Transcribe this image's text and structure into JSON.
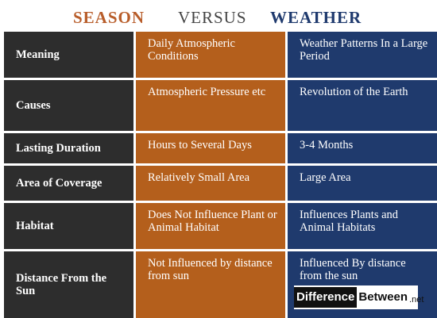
{
  "title": {
    "left": "SEASON",
    "middle": "VERSUS",
    "right": "WEATHER"
  },
  "rows": [
    {
      "label": "Meaning",
      "season": "Daily Atmospheric Conditions",
      "weather": "Weather Patterns In a Large Period"
    },
    {
      "label": "Causes",
      "season": "Atmospheric Pressure etc",
      "weather": "Revolution of the Earth"
    },
    {
      "label": "Lasting Duration",
      "season": "Hours to Several Days",
      "weather": "3-4 Months"
    },
    {
      "label": "Area of Coverage",
      "season": "Relatively Small Area",
      "weather": "Large Area"
    },
    {
      "label": "Habitat",
      "season": "Does Not Influence Plant or Animal Habitat",
      "weather": "Influences Plants and Animal Habitats"
    },
    {
      "label": "Distance From the Sun",
      "season": "Not Influenced by distance from sun",
      "weather": "Influenced By distance from the sun"
    }
  ],
  "logo": {
    "part1": "Difference",
    "part2": "Between",
    "part3": ".net"
  },
  "colors": {
    "season_accent": "#b45f1c",
    "weather_accent": "#1f3a6d",
    "label_bg": "#2d2d2d"
  }
}
